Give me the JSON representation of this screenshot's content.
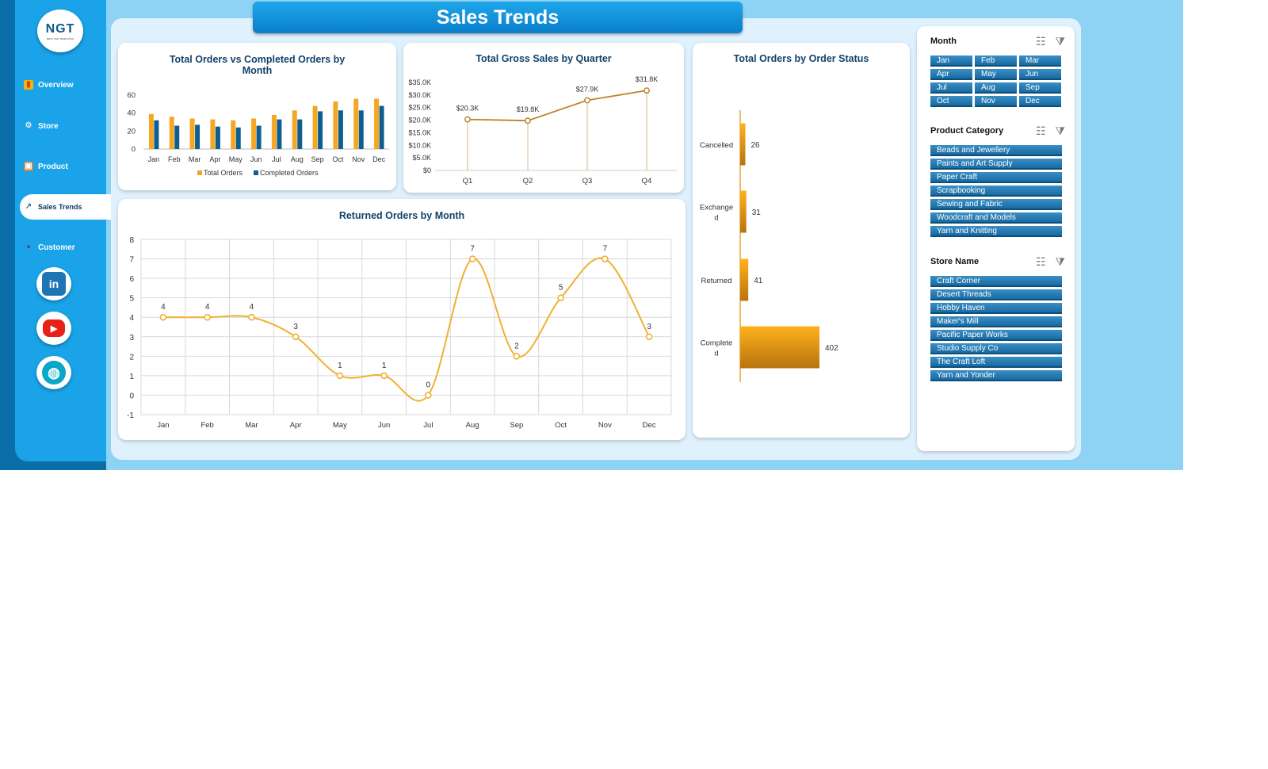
{
  "title": "Sales Trends",
  "logo": {
    "mark": "NGT",
    "sub": "BEST NGR TEMPLATES"
  },
  "nav": [
    {
      "label": "Overview",
      "icon": "bar-chart-icon"
    },
    {
      "label": "Store",
      "icon": "gear-icon"
    },
    {
      "label": "Product",
      "icon": "box-icon"
    },
    {
      "label": "Sales Trends",
      "icon": "trend-chart-icon"
    },
    {
      "label": "Customer",
      "icon": "users-icon"
    }
  ],
  "social": [
    {
      "name": "linkedin-icon",
      "glyph": "in",
      "color": "#1d75b3"
    },
    {
      "name": "youtube-icon",
      "glyph": "▶",
      "color": "#e62117"
    },
    {
      "name": "website-globe-icon",
      "glyph": "◍",
      "color": "#0aa7c8"
    }
  ],
  "colors": {
    "orange": "#f5a623",
    "navy": "#0e5f91",
    "brown": "#b8862a",
    "slicer": "#1d71a8"
  },
  "chart_data": [
    {
      "id": "orders-vs-completed",
      "type": "bar",
      "title": "Total Orders vs Completed Orders by Month",
      "categories": [
        "Jan",
        "Feb",
        "Mar",
        "Apr",
        "May",
        "Jun",
        "Jul",
        "Aug",
        "Sep",
        "Oct",
        "Nov",
        "Dec"
      ],
      "series": [
        {
          "name": "Total Orders",
          "values": [
            39,
            36,
            34,
            33,
            32,
            34,
            38,
            43,
            48,
            53,
            56,
            56
          ]
        },
        {
          "name": "Completed Orders",
          "values": [
            32,
            26,
            27,
            25,
            24,
            26,
            33,
            33,
            42,
            43,
            43,
            48
          ]
        }
      ],
      "ylim": [
        0,
        60
      ],
      "yticks": [
        "0",
        "20",
        "40",
        "60"
      ],
      "legend": "bottom",
      "grid": false
    },
    {
      "id": "gross-sales-quarter",
      "type": "line",
      "title": "Total Gross Sales by Quarter",
      "categories": [
        "Q1",
        "Q2",
        "Q3",
        "Q4"
      ],
      "values": [
        20.3,
        19.8,
        27.9,
        31.8
      ],
      "labels": [
        "$20.3K",
        "$19.8K",
        "$27.9K",
        "$31.8K"
      ],
      "ylim": [
        0,
        35
      ],
      "yticks": [
        "$0",
        "$5.0K",
        "$10.0K",
        "$15.0K",
        "$20.0K",
        "$25.0K",
        "$30.0K",
        "$35.0K"
      ],
      "grid": false
    },
    {
      "id": "returned-orders-month",
      "type": "line",
      "title": "Returned Orders by Month",
      "categories": [
        "Jan",
        "Feb",
        "Mar",
        "Apr",
        "May",
        "Jun",
        "Jul",
        "Aug",
        "Sep",
        "Oct",
        "Nov",
        "Dec"
      ],
      "values": [
        4,
        4,
        4,
        3,
        1,
        1,
        0,
        7,
        2,
        5,
        7,
        3
      ],
      "ylim": [
        -1,
        8
      ],
      "yticks": [
        "-1",
        "0",
        "1",
        "2",
        "3",
        "4",
        "5",
        "6",
        "7",
        "8"
      ],
      "grid": true
    },
    {
      "id": "orders-by-status",
      "type": "bar",
      "orientation": "horizontal",
      "title": "Total Orders by Order Status",
      "categories": [
        "Cancelled",
        "Exchange d",
        "Returned",
        "Complete d"
      ],
      "values": [
        26,
        31,
        41,
        402
      ]
    }
  ],
  "slicers": [
    {
      "title": "Month",
      "items": [
        "Jan",
        "Feb",
        "Mar",
        "Apr",
        "May",
        "Jun",
        "Jul",
        "Aug",
        "Sep",
        "Oct",
        "Nov",
        "Dec"
      ]
    },
    {
      "title": "Product Category",
      "items": [
        "Beads and Jewellery",
        "Paints and Art Supply",
        "Paper Craft",
        "Scrapbooking",
        "Sewing and Fabric",
        "Woodcraft and Models",
        "Yarn and Knitting"
      ]
    },
    {
      "title": "Store Name",
      "items": [
        "Craft Corner",
        "Desert Threads",
        "Hobby Haven",
        "Maker's Mill",
        "Pacific Paper Works",
        "Studio Supply Co",
        "The Craft Loft",
        "Yarn and Yonder"
      ]
    }
  ]
}
